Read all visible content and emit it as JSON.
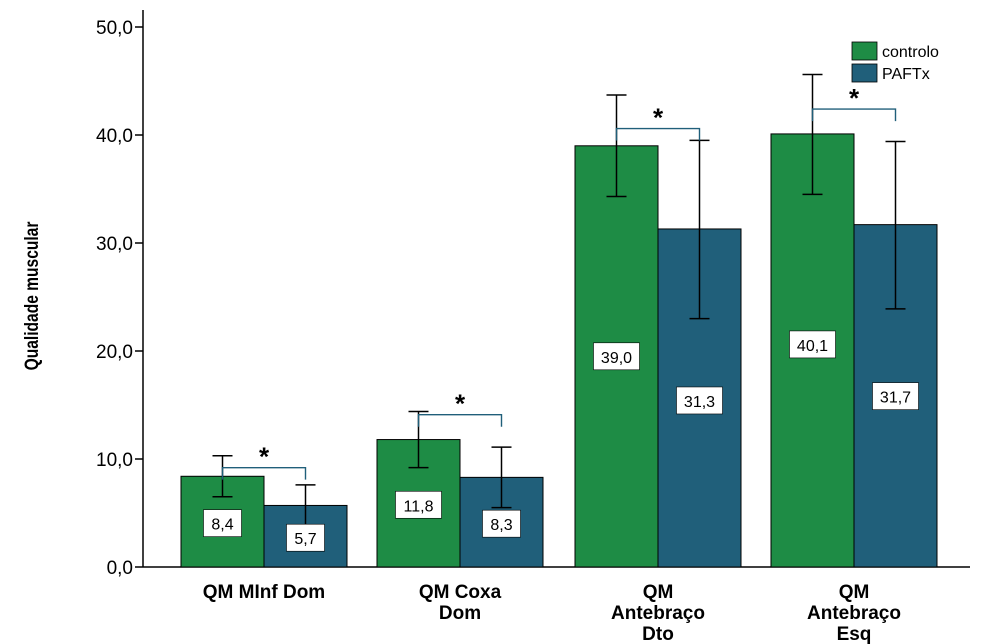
{
  "chart_data": {
    "type": "bar",
    "ylabel": "Qualidade muscular",
    "xlabel": "",
    "ylim": [
      0,
      50
    ],
    "y_ticks": [
      0,
      10,
      20,
      30,
      40,
      50
    ],
    "y_tick_labels": [
      "0,0",
      "10,0",
      "20,0",
      "30,0",
      "40,0",
      "50,0"
    ],
    "grid": false,
    "legend_position": "top-right",
    "categories": [
      [
        "QM MInf Dom"
      ],
      [
        "QM Coxa",
        "Dom"
      ],
      [
        "QM",
        "Antebraço",
        "Dto"
      ],
      [
        "QM",
        "Antebraço",
        "Esq"
      ]
    ],
    "series": [
      {
        "name": "controlo",
        "color": "#1e8c45",
        "values": [
          8.4,
          11.8,
          39.0,
          40.1
        ],
        "labels": [
          "8,4",
          "11,8",
          "39,0",
          "40,1"
        ],
        "error_low": [
          6.5,
          9.2,
          34.3,
          34.5
        ],
        "error_high": [
          10.3,
          14.4,
          43.7,
          45.6
        ]
      },
      {
        "name": "PAFTx",
        "color": "#205f7a",
        "values": [
          5.7,
          8.3,
          31.3,
          31.7
        ],
        "labels": [
          "5,7",
          "8,3",
          "31,3",
          "31,7"
        ],
        "error_low": [
          3.8,
          5.5,
          23.0,
          23.9
        ],
        "error_high": [
          7.6,
          11.1,
          39.5,
          39.4
        ]
      }
    ],
    "significance": [
      {
        "category": 0,
        "text": "*",
        "y": 9.2
      },
      {
        "category": 1,
        "text": "*",
        "y": 14.1
      },
      {
        "category": 2,
        "text": "*",
        "y": 40.6
      },
      {
        "category": 3,
        "text": "*",
        "y": 42.4
      }
    ]
  }
}
